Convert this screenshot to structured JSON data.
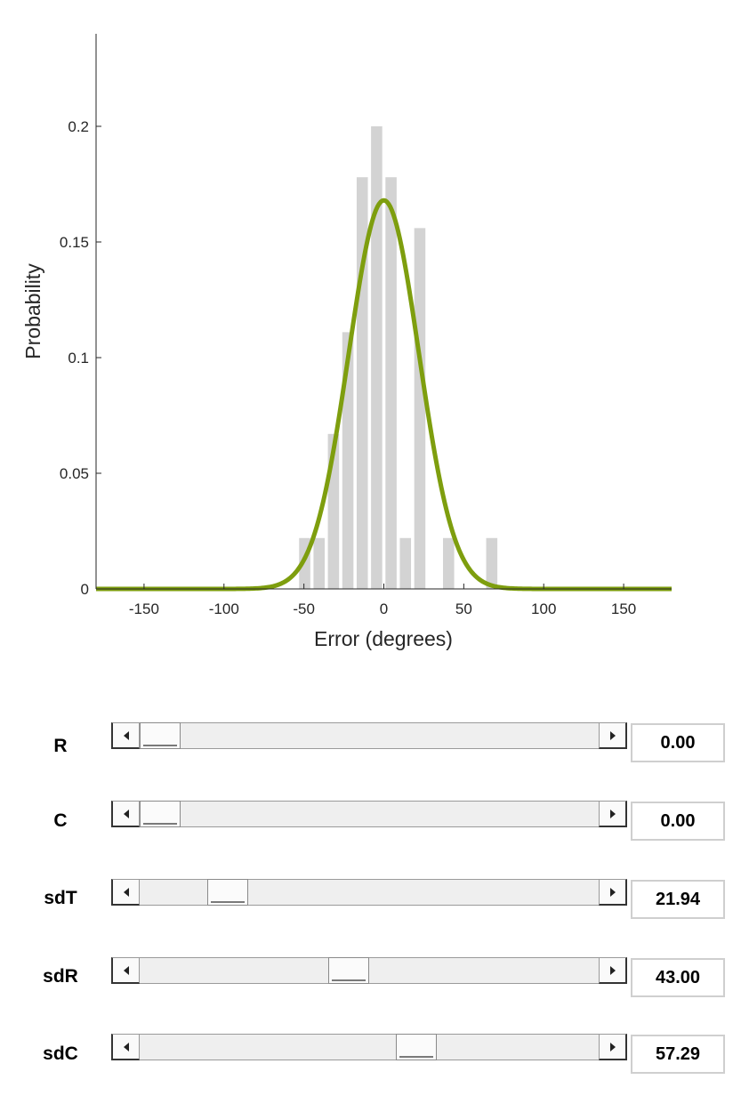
{
  "chart_data": {
    "type": "bar",
    "xlabel": "Error (degrees)",
    "ylabel": "Probability",
    "xlim": [
      -180,
      180
    ],
    "ylim": [
      0,
      0.24
    ],
    "xticks": [
      -150,
      -100,
      -50,
      0,
      50,
      100,
      150
    ],
    "yticks": [
      0,
      0.05,
      0.1,
      0.15,
      0.2
    ],
    "ytick_labels": [
      "0",
      "0.05",
      "0.1",
      "0.15",
      "0.2"
    ],
    "bar_width": 7,
    "bars": {
      "x": [
        -49.5,
        -40.5,
        -31.5,
        -22.5,
        -13.5,
        -4.5,
        4.5,
        13.5,
        22.5,
        40.5,
        67.5
      ],
      "values": [
        0.022,
        0.022,
        0.067,
        0.111,
        0.178,
        0.2,
        0.178,
        0.022,
        0.156,
        0.022,
        0.022
      ]
    },
    "fit_curve": {
      "type": "gaussian",
      "mean": 0,
      "sd": 21.94,
      "peak": 0.168
    },
    "colors": {
      "bars": "#d3d3d3",
      "curve": "#7e9e0e",
      "axis": "#262626"
    }
  },
  "controls": [
    {
      "label": "R",
      "value": "0.00",
      "fraction": 0.0
    },
    {
      "label": "C",
      "value": "0.00",
      "fraction": 0.0
    },
    {
      "label": "sdT",
      "value": "21.94",
      "fraction": 0.16
    },
    {
      "label": "sdR",
      "value": "43.00",
      "fraction": 0.45
    },
    {
      "label": "sdC",
      "value": "57.29",
      "fraction": 0.61
    }
  ]
}
